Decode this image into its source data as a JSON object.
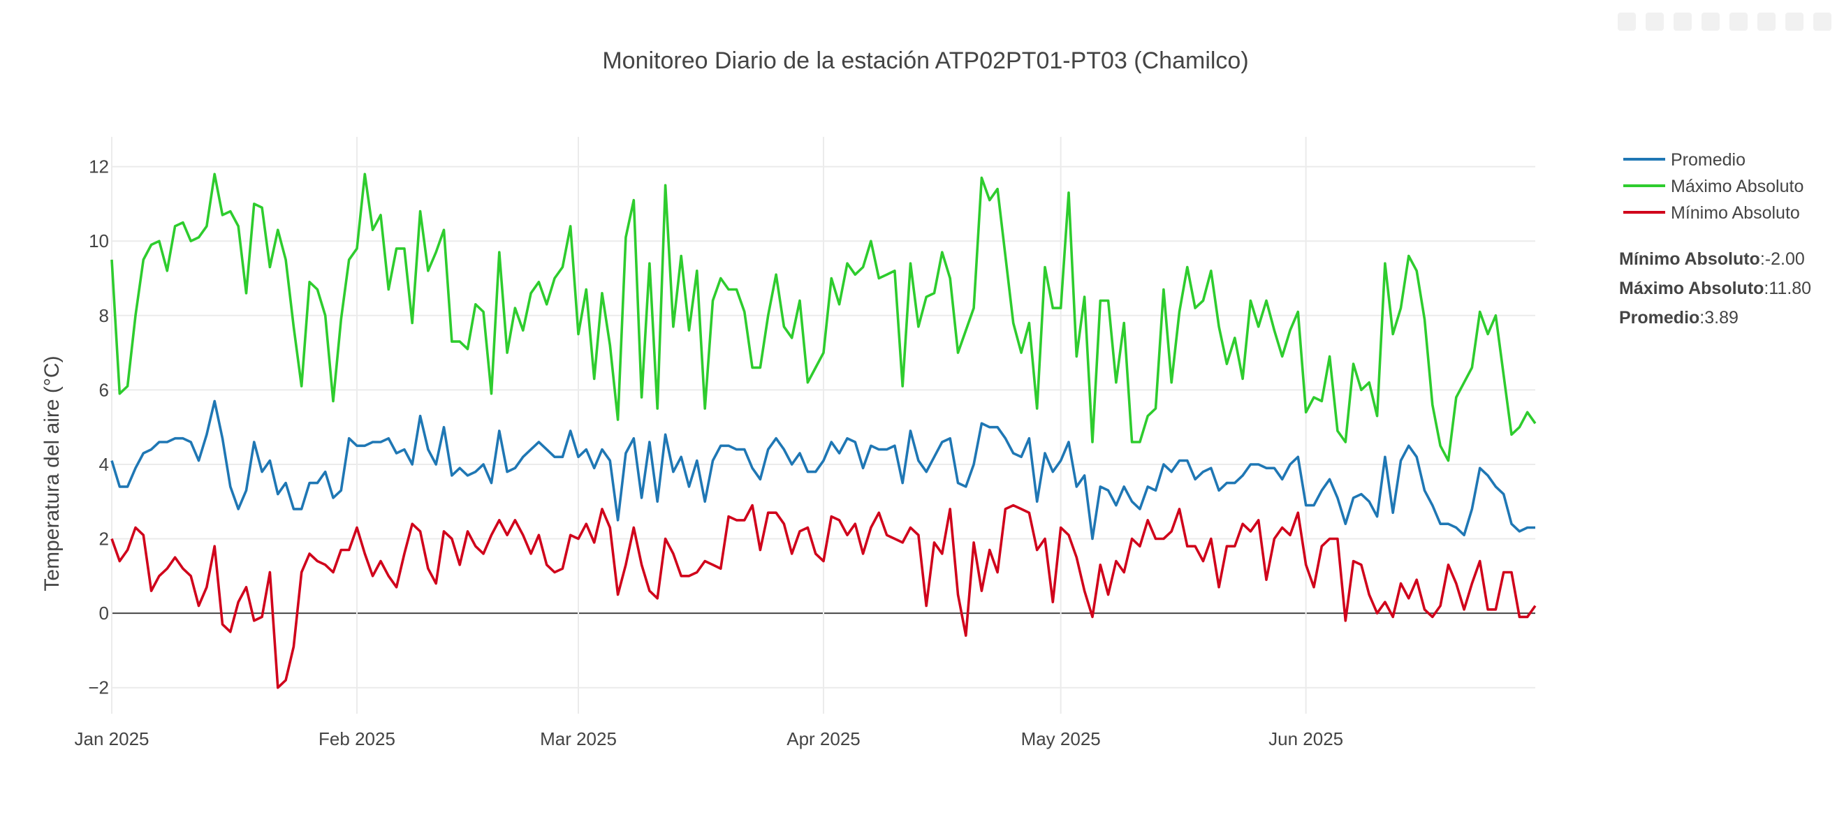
{
  "chart_data": {
    "type": "line",
    "title": "Monitoreo Diario de la estación ATP02PT01-PT03 (Chamilco)",
    "xlabel": "",
    "ylabel": "Temperatura del aire (°C)",
    "ylim": [
      -2.7,
      12.8
    ],
    "yticks": [
      -2,
      0,
      2,
      4,
      6,
      8,
      10,
      12
    ],
    "ytick_labels": [
      "−2",
      "0",
      "2",
      "4",
      "6",
      "8",
      "10",
      "12"
    ],
    "x_range_days": [
      0,
      180
    ],
    "xticks": [
      {
        "day": 0,
        "label": "Jan 2025"
      },
      {
        "day": 31,
        "label": "Feb 2025"
      },
      {
        "day": 59,
        "label": "Mar 2025"
      },
      {
        "day": 90,
        "label": "Apr 2025"
      },
      {
        "day": 120,
        "label": "May 2025"
      },
      {
        "day": 151,
        "label": "Jun 2025"
      }
    ],
    "start_date": "2025-01-01",
    "series": [
      {
        "name": "Promedio",
        "color": "#1f77b4",
        "values": [
          4.1,
          3.4,
          3.4,
          3.9,
          4.3,
          4.4,
          4.6,
          4.6,
          4.7,
          4.7,
          4.6,
          4.1,
          4.8,
          5.7,
          4.7,
          3.4,
          2.8,
          3.3,
          4.6,
          3.8,
          4.1,
          3.2,
          3.5,
          2.8,
          2.8,
          3.5,
          3.5,
          3.8,
          3.1,
          3.3,
          4.7,
          4.5,
          4.5,
          4.6,
          4.6,
          4.7,
          4.3,
          4.4,
          4.0,
          5.3,
          4.4,
          4.0,
          5.0,
          3.7,
          3.9,
          3.7,
          3.8,
          4.0,
          3.5,
          4.9,
          3.8,
          3.9,
          4.2,
          4.4,
          4.6,
          4.4,
          4.2,
          4.2,
          4.9,
          4.2,
          4.4,
          3.9,
          4.4,
          4.1,
          2.5,
          4.3,
          4.7,
          3.1,
          4.6,
          3.0,
          4.8,
          3.8,
          4.2,
          3.4,
          4.1,
          3.0,
          4.1,
          4.5,
          4.5,
          4.4,
          4.4,
          3.9,
          3.6,
          4.4,
          4.7,
          4.4,
          4.0,
          4.3,
          3.8,
          3.8,
          4.1,
          4.6,
          4.3,
          4.7,
          4.6,
          3.9,
          4.5,
          4.4,
          4.4,
          4.5,
          3.5,
          4.9,
          4.1,
          3.8,
          4.2,
          4.6,
          4.7,
          3.5,
          3.4,
          4.0,
          5.1,
          5.0,
          5.0,
          4.7,
          4.3,
          4.2,
          4.7,
          3.0,
          4.3,
          3.8,
          4.1,
          4.6,
          3.4,
          3.7,
          2.0,
          3.4,
          3.3,
          2.9,
          3.4,
          3.0,
          2.8,
          3.4,
          3.3,
          4.0,
          3.8,
          4.1,
          4.1,
          3.6,
          3.8,
          3.9,
          3.3,
          3.5,
          3.5,
          3.7,
          4.0,
          4.0,
          3.9,
          3.9,
          3.6,
          4.0,
          4.2,
          2.9,
          2.9,
          3.3,
          3.6,
          3.1,
          2.4,
          3.1,
          3.2,
          3.0,
          2.6,
          4.2,
          2.7,
          4.1,
          4.5,
          4.2,
          3.3,
          2.9,
          2.4,
          2.4,
          2.3,
          2.1,
          2.8,
          3.9,
          3.7,
          3.4,
          3.2,
          2.4,
          2.2,
          2.3,
          2.3
        ]
      },
      {
        "name": "Máximo Absoluto",
        "color": "#2ecc2e",
        "values": [
          9.5,
          5.9,
          6.1,
          8.0,
          9.5,
          9.9,
          10.0,
          9.2,
          10.4,
          10.5,
          10.0,
          10.1,
          10.4,
          11.8,
          10.7,
          10.8,
          10.4,
          8.6,
          11.0,
          10.9,
          9.3,
          10.3,
          9.5,
          7.7,
          6.1,
          8.9,
          8.7,
          8.0,
          5.7,
          7.9,
          9.5,
          9.8,
          11.8,
          10.3,
          10.7,
          8.7,
          9.8,
          9.8,
          7.8,
          10.8,
          9.2,
          9.7,
          10.3,
          7.3,
          7.3,
          7.1,
          8.3,
          8.1,
          5.9,
          9.7,
          7.0,
          8.2,
          7.6,
          8.6,
          8.9,
          8.3,
          9.0,
          9.3,
          10.4,
          7.5,
          8.7,
          6.3,
          8.6,
          7.2,
          5.2,
          10.1,
          11.1,
          5.8,
          9.4,
          5.5,
          11.5,
          7.7,
          9.6,
          7.6,
          9.2,
          5.5,
          8.4,
          9.0,
          8.7,
          8.7,
          8.1,
          6.6,
          6.6,
          8.0,
          9.1,
          7.7,
          7.4,
          8.4,
          6.2,
          6.6,
          7.0,
          9.0,
          8.3,
          9.4,
          9.1,
          9.3,
          10.0,
          9.0,
          9.1,
          9.2,
          6.1,
          9.4,
          7.7,
          8.5,
          8.6,
          9.7,
          9.0,
          7.0,
          7.6,
          8.2,
          11.7,
          11.1,
          11.4,
          9.6,
          7.8,
          7.0,
          7.8,
          5.5,
          9.3,
          8.2,
          8.2,
          11.3,
          6.9,
          8.5,
          4.6,
          8.4,
          8.4,
          6.2,
          7.8,
          4.6,
          4.6,
          5.3,
          5.5,
          8.7,
          6.2,
          8.1,
          9.3,
          8.2,
          8.4,
          9.2,
          7.7,
          6.7,
          7.4,
          6.3,
          8.4,
          7.7,
          8.4,
          7.6,
          6.9,
          7.6,
          8.1,
          5.4,
          5.8,
          5.7,
          6.9,
          4.9,
          4.6,
          6.7,
          6.0,
          6.2,
          5.3,
          9.4,
          7.5,
          8.2,
          9.6,
          9.2,
          7.9,
          5.6,
          4.5,
          4.1,
          5.8,
          6.2,
          6.6,
          8.1,
          7.5,
          8.0,
          6.4,
          4.8,
          5.0,
          5.4,
          5.1
        ]
      },
      {
        "name": "Mínimo Absoluto",
        "color": "#d0021b",
        "values": [
          2.0,
          1.4,
          1.7,
          2.3,
          2.1,
          0.6,
          1.0,
          1.2,
          1.5,
          1.2,
          1.0,
          0.2,
          0.7,
          1.8,
          -0.3,
          -0.5,
          0.3,
          0.7,
          -0.2,
          -0.1,
          1.1,
          -2.0,
          -1.8,
          -0.9,
          1.1,
          1.6,
          1.4,
          1.3,
          1.1,
          1.7,
          1.7,
          2.3,
          1.6,
          1.0,
          1.4,
          1.0,
          0.7,
          1.6,
          2.4,
          2.2,
          1.2,
          0.8,
          2.2,
          2.0,
          1.3,
          2.2,
          1.8,
          1.6,
          2.1,
          2.5,
          2.1,
          2.5,
          2.1,
          1.6,
          2.1,
          1.3,
          1.1,
          1.2,
          2.1,
          2.0,
          2.4,
          1.9,
          2.8,
          2.3,
          0.5,
          1.3,
          2.3,
          1.3,
          0.6,
          0.4,
          2.0,
          1.6,
          1.0,
          1.0,
          1.1,
          1.4,
          1.3,
          1.2,
          2.6,
          2.5,
          2.5,
          2.9,
          1.7,
          2.7,
          2.7,
          2.4,
          1.6,
          2.2,
          2.3,
          1.6,
          1.4,
          2.6,
          2.5,
          2.1,
          2.4,
          1.6,
          2.3,
          2.7,
          2.1,
          2.0,
          1.9,
          2.3,
          2.1,
          0.2,
          1.9,
          1.6,
          2.8,
          0.5,
          -0.6,
          1.9,
          0.6,
          1.7,
          1.1,
          2.8,
          2.9,
          2.8,
          2.7,
          1.7,
          2.0,
          0.3,
          2.3,
          2.1,
          1.5,
          0.6,
          -0.1,
          1.3,
          0.5,
          1.4,
          1.1,
          2.0,
          1.8,
          2.5,
          2.0,
          2.0,
          2.2,
          2.8,
          1.8,
          1.8,
          1.4,
          2.0,
          0.7,
          1.8,
          1.8,
          2.4,
          2.2,
          2.5,
          0.9,
          2.0,
          2.3,
          2.1,
          2.7,
          1.3,
          0.7,
          1.8,
          2.0,
          2.0,
          -0.2,
          1.4,
          1.3,
          0.5,
          0.0,
          0.3,
          -0.1,
          0.8,
          0.4,
          0.9,
          0.1,
          -0.1,
          0.2,
          1.3,
          0.8,
          0.1,
          0.8,
          1.4,
          0.1,
          0.1,
          1.1,
          1.1,
          -0.1,
          -0.1,
          0.2
        ]
      }
    ],
    "legend": [
      "Promedio",
      "Máximo Absoluto",
      "Mínimo Absoluto"
    ],
    "legend_position": "top-right",
    "grid": true
  },
  "stats": {
    "min_label": "Mínimo Absoluto",
    "min_value": ":-2.00",
    "max_label": "Máximo Absoluto",
    "max_value": ":11.80",
    "avg_label": "Promedio",
    "avg_value": ":3.89"
  },
  "colors": {
    "grid": "#ebebeb",
    "zeroline": "#444444",
    "text": "#444444"
  }
}
